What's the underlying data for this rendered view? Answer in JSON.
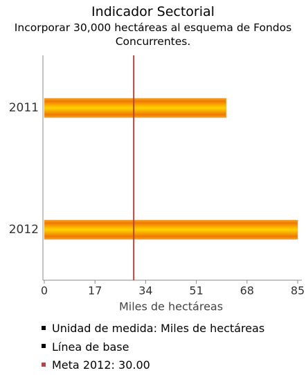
{
  "chart_data": {
    "type": "hbar",
    "title": "Indicador Sectorial",
    "subtitle": "Incorporar 30,000 hectáreas al esquema de Fondos Concurrentes.",
    "xlabel": "Miles de hectáreas",
    "categories": [
      "2011",
      "2012"
    ],
    "values": [
      61,
      85
    ],
    "xlim": [
      0,
      85
    ],
    "xticks": [
      0,
      17,
      34,
      51,
      68,
      85
    ],
    "reference_line": {
      "value": 30,
      "color": "#b5453f"
    },
    "legend": [
      {
        "label": "Unidad de medida: Miles de hectáreas",
        "color": "#000000"
      },
      {
        "label": "Línea de base",
        "color": "#000000"
      },
      {
        "label": "Meta 2012: 30.00",
        "color": "#b5453f"
      }
    ]
  }
}
